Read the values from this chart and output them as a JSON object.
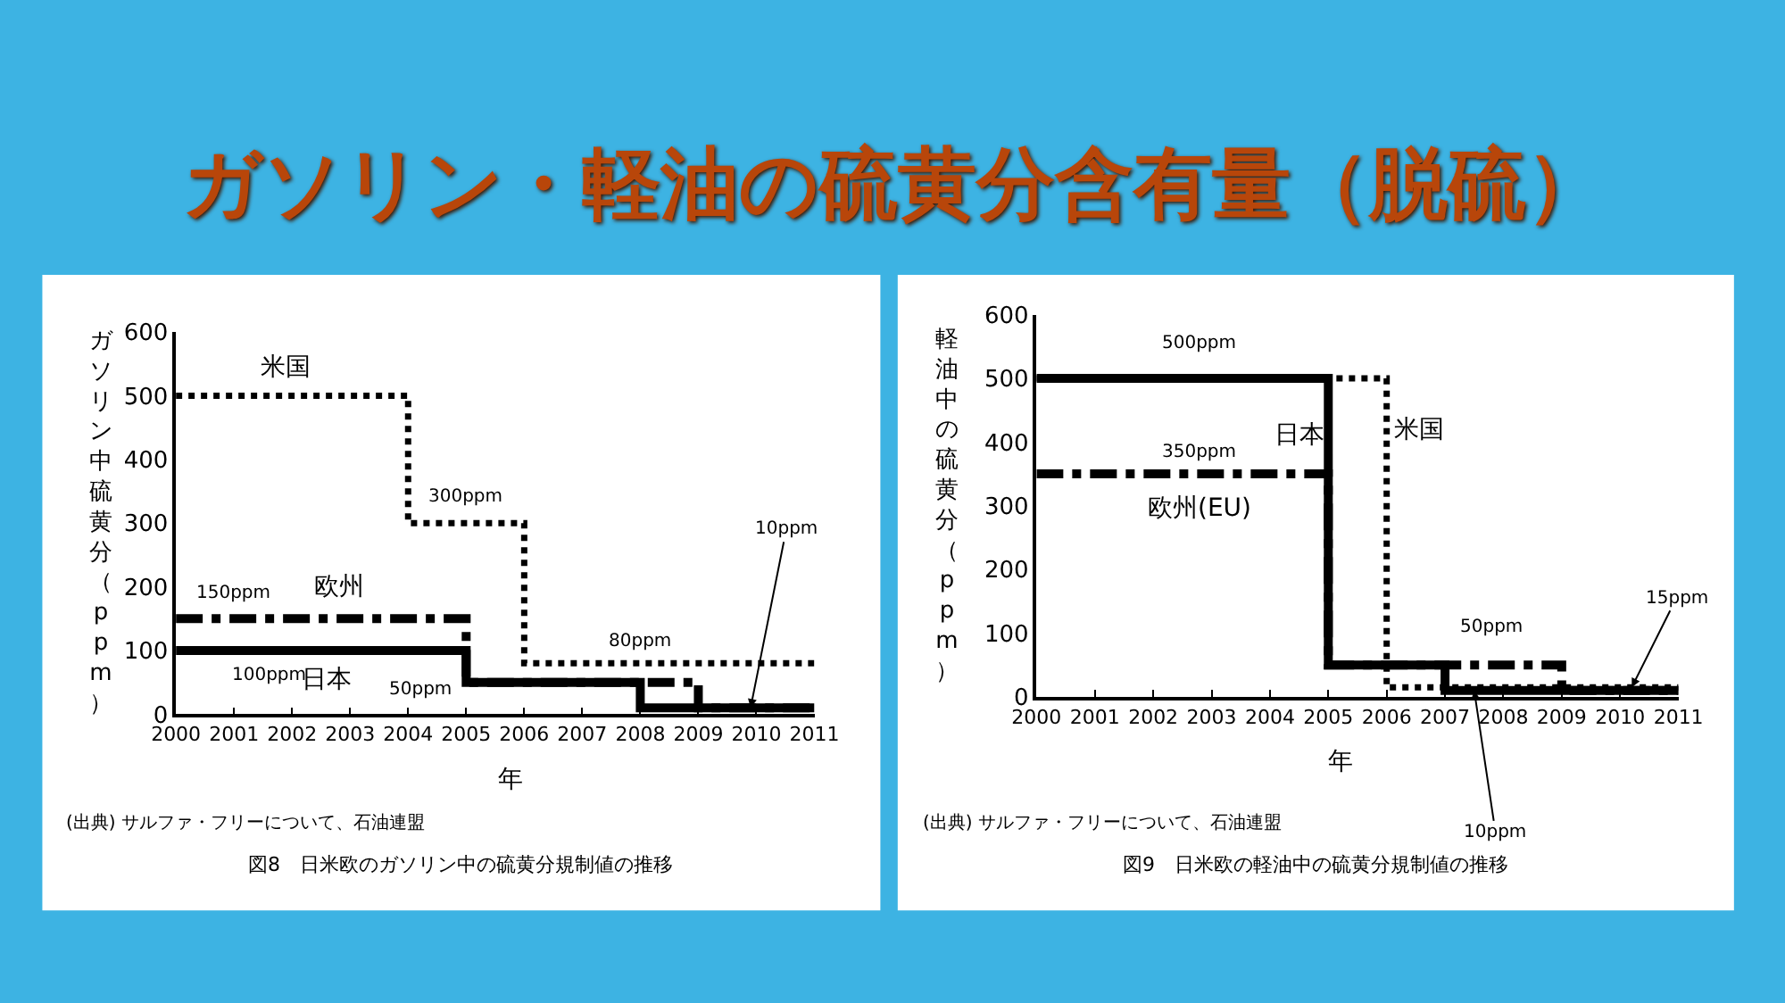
{
  "chart_data": [
    {
      "type": "step",
      "title": "ガソリン・軽油の硫黄分含有量（脱硫）",
      "xlabel": "年",
      "ylabel": "ガソリン中硫黄分（ppm）",
      "xlim": [
        2000,
        2011
      ],
      "xticks": [
        2000,
        2001,
        2002,
        2003,
        2004,
        2005,
        2006,
        2007,
        2008,
        2009,
        2010,
        2011
      ],
      "ylim": [
        0,
        600
      ],
      "yticks": [
        0,
        100,
        200,
        300,
        400,
        500,
        600
      ],
      "grid": false,
      "legend": false,
      "series": [
        {
          "name": "米国",
          "color": "#000000",
          "line_style": "dotted",
          "x": [
            2000,
            2004,
            2006,
            2011
          ],
          "values": [
            500,
            300,
            80,
            80
          ]
        },
        {
          "name": "欧州",
          "color": "#000000",
          "line_style": "dashdot",
          "x": [
            2000,
            2005,
            2009,
            2011
          ],
          "values": [
            150,
            50,
            10,
            10
          ]
        },
        {
          "name": "日本",
          "color": "#000000",
          "line_style": "solid",
          "x": [
            2000,
            2005,
            2008,
            2011
          ],
          "values": [
            100,
            50,
            10,
            10
          ]
        }
      ],
      "annotations": [
        "300ppm",
        "150ppm",
        "80ppm",
        "100ppm",
        "50ppm",
        {
          "text": "10ppm",
          "x": 2009.9,
          "y": 10
        },
        "(出典) サルファ・フリーについて、石油連盟",
        "図8　日米欧のガソリン中の硫黄分規制値の推移"
      ]
    },
    {
      "type": "step",
      "xlabel": "年",
      "ylabel": "軽油中の硫黄分（ppm）",
      "xlim": [
        2000,
        2011
      ],
      "xticks": [
        2000,
        2001,
        2002,
        2003,
        2004,
        2005,
        2006,
        2007,
        2008,
        2009,
        2010,
        2011
      ],
      "ylim": [
        0,
        600
      ],
      "yticks": [
        0,
        100,
        200,
        300,
        400,
        500,
        600
      ],
      "grid": false,
      "legend": false,
      "series": [
        {
          "name": "日本",
          "color": "#000000",
          "line_style": "solid",
          "x": [
            2000,
            2005,
            2007,
            2011
          ],
          "values": [
            500,
            50,
            10,
            10
          ]
        },
        {
          "name": "米国",
          "color": "#000000",
          "line_style": "dotted",
          "x": [
            2000,
            2006,
            2011
          ],
          "values": [
            500,
            15,
            15
          ]
        },
        {
          "name": "欧州(EU)",
          "color": "#000000",
          "line_style": "dashdot",
          "x": [
            2000,
            2005,
            2009,
            2011
          ],
          "values": [
            350,
            50,
            10,
            10
          ]
        }
      ],
      "annotations": [
        "500ppm",
        "350ppm",
        "50ppm",
        {
          "text": "15ppm",
          "x": 2010.2,
          "y": 15
        },
        {
          "text": "10ppm",
          "x": 2007.5,
          "y": 10
        },
        "(出典) サルファ・フリーについて、石油連盟",
        "図9　日米欧の軽油中の硫黄分規制値の推移"
      ]
    }
  ]
}
